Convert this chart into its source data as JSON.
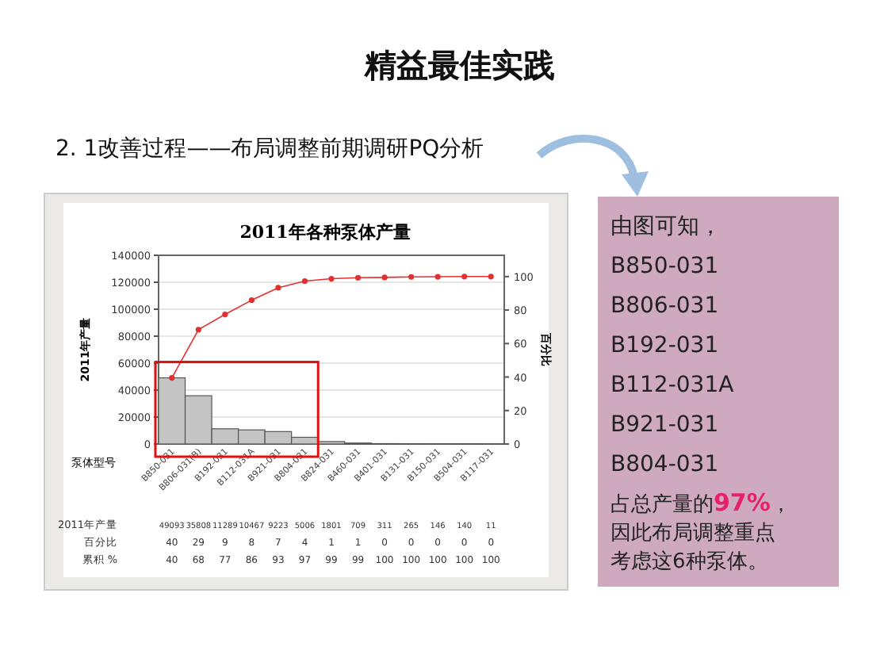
{
  "chart_data": {
    "type": "bar",
    "title": "2011年各种泵体产量",
    "xlabel": "泵体型号",
    "ylabel": "2011年产量",
    "y2label": "百分比",
    "categories": [
      "B850-031",
      "B806-031(B)",
      "B192-031",
      "B112-031A",
      "B921-031",
      "B804-031",
      "B824-031",
      "B460-031",
      "B401-031",
      "B131-031",
      "B150-031",
      "B504-031",
      "B117-031"
    ],
    "series": [
      {
        "color": "#c4c4c4",
        "values": [
          49093,
          35808,
          11289,
          10467,
          9223,
          5006,
          1801,
          709,
          311,
          265,
          146,
          140,
          11
        ],
        "value_labels": [
          "49093",
          "35808",
          "11289",
          "10467",
          "9223",
          "5006",
          "1801",
          "709",
          "311",
          "265",
          "146",
          "140",
          "11"
        ]
      },
      {
        "type": "line",
        "axis": "y2",
        "color": "#e03030",
        "marker": "circle",
        "values": [
          39.5,
          68.3,
          77.4,
          85.9,
          93.3,
          97.3,
          98.7,
          99.3,
          99.5,
          99.8,
          99.9,
          100,
          100
        ],
        "value_labels": [
          "40",
          "68",
          "77",
          "86",
          "93",
          "97",
          "99",
          "99",
          "100",
          "100",
          "100",
          "100",
          "100"
        ]
      }
    ],
    "ylim": [
      0,
      140000
    ],
    "yticks": [
      0,
      20000,
      40000,
      60000,
      80000,
      100000,
      120000,
      140000
    ],
    "y2lim": [
      0,
      112.7
    ],
    "y2ticks": [
      0,
      20,
      40,
      60,
      80,
      100
    ],
    "grid": "y",
    "annotations": [
      "精益最佳实践",
      "2. 1改善过程——布局调整前期调研PQ分析",
      "2011年产量",
      "百分比",
      "累积 %",
      "40",
      "29",
      "9",
      "8",
      "7",
      "4",
      "1",
      "1",
      "0",
      "0",
      "0",
      "0",
      "0",
      "由图可知，",
      "B850-031",
      "B806-031",
      "B192-031",
      "B112-031A",
      "B921-031",
      "B804-031",
      "占总产量的97%，",
      "因此布局调整重点",
      "考虑这6种泵体。"
    ]
  }
}
